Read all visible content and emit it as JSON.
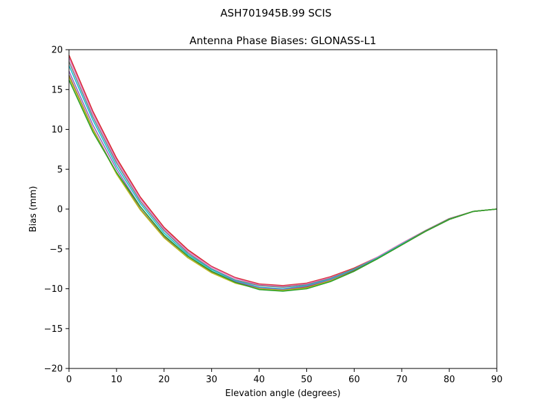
{
  "figure": {
    "suptitle": "ASH701945B.99   SCIS"
  },
  "chart_data": {
    "type": "line",
    "title": "Antenna Phase Biases: GLONASS-L1",
    "xlabel": "Elevation angle (degrees)",
    "ylabel": "Bias (mm)",
    "xlim": [
      0,
      90
    ],
    "ylim": [
      -20,
      20
    ],
    "xticks": [
      0,
      10,
      20,
      30,
      40,
      50,
      60,
      70,
      80,
      90
    ],
    "xtick_labels": [
      "0",
      "10",
      "20",
      "30",
      "40",
      "50",
      "60",
      "70",
      "80",
      "90"
    ],
    "yticks": [
      -20,
      -15,
      -10,
      -5,
      0,
      5,
      10,
      15,
      20
    ],
    "ytick_labels": [
      "−20",
      "−15",
      "−10",
      "−5",
      "0",
      "5",
      "10",
      "15",
      "20"
    ],
    "grid": false,
    "x": [
      0,
      5,
      10,
      15,
      20,
      25,
      30,
      35,
      40,
      45,
      50,
      55,
      60,
      65,
      70,
      75,
      80,
      85,
      90
    ],
    "series": [
      {
        "color": "#d62728",
        "values": [
          19.3,
          12.3,
          6.4,
          1.5,
          -2.3,
          -5.1,
          -7.2,
          -8.6,
          -9.4,
          -9.6,
          -9.3,
          -8.5,
          -7.4,
          -6.0,
          -4.3,
          -2.7,
          -1.2,
          -0.3,
          0.0
        ]
      },
      {
        "color": "#e377c2",
        "values": [
          19.0,
          12.0,
          6.1,
          1.3,
          -2.5,
          -5.3,
          -7.3,
          -8.7,
          -9.5,
          -9.7,
          -9.4,
          -8.6,
          -7.5,
          -6.0,
          -4.3,
          -2.7,
          -1.2,
          -0.3,
          0.0
        ]
      },
      {
        "color": "#7f7f7f",
        "values": [
          18.5,
          11.6,
          5.8,
          1.0,
          -2.7,
          -5.5,
          -7.5,
          -8.9,
          -9.6,
          -9.8,
          -9.5,
          -8.7,
          -7.5,
          -6.1,
          -4.4,
          -2.7,
          -1.2,
          -0.3,
          0.0
        ]
      },
      {
        "color": "#17becf",
        "values": [
          18.0,
          11.2,
          5.4,
          0.7,
          -3.0,
          -5.7,
          -7.6,
          -9.0,
          -9.8,
          -10.0,
          -9.6,
          -8.8,
          -7.6,
          -6.1,
          -4.4,
          -2.8,
          -1.3,
          -0.3,
          0.0
        ]
      },
      {
        "color": "#9467bd",
        "values": [
          17.3,
          10.6,
          5.0,
          0.3,
          -3.3,
          -5.9,
          -7.8,
          -9.1,
          -9.9,
          -10.1,
          -9.7,
          -8.9,
          -7.7,
          -6.2,
          -4.5,
          -2.8,
          -1.3,
          -0.3,
          0.0
        ]
      },
      {
        "color": "#8c564b",
        "values": [
          16.8,
          10.1,
          4.5,
          0.0,
          -3.5,
          -6.1,
          -7.9,
          -9.2,
          -10.0,
          -10.2,
          -9.8,
          -9.0,
          -7.7,
          -6.2,
          -4.5,
          -2.8,
          -1.3,
          -0.3,
          0.0
        ]
      },
      {
        "color": "#bcbd22",
        "values": [
          16.6,
          10.0,
          4.4,
          -0.1,
          -3.6,
          -6.1,
          -8.0,
          -9.3,
          -10.0,
          -10.2,
          -9.9,
          -9.0,
          -7.8,
          -6.2,
          -4.5,
          -2.8,
          -1.3,
          -0.3,
          0.0
        ]
      },
      {
        "color": "#2ca02c",
        "values": [
          16.2,
          9.7,
          4.6,
          0.3,
          -3.3,
          -5.9,
          -7.8,
          -9.2,
          -10.1,
          -10.3,
          -10.0,
          -9.1,
          -7.8,
          -6.2,
          -4.5,
          -2.8,
          -1.3,
          -0.3,
          0.0
        ]
      }
    ]
  }
}
